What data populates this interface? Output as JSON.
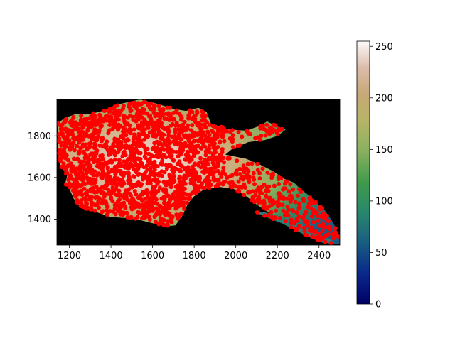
{
  "chart_data": {
    "type": "heatmap",
    "title": "",
    "xlabel": "",
    "ylabel": "",
    "xlim": [
      1140,
      2500
    ],
    "ylim": [
      1275,
      1975
    ],
    "xticks": [
      1200,
      1400,
      1600,
      1800,
      2000,
      2200,
      2400
    ],
    "xtick_labels": [
      "1200",
      "1400",
      "1600",
      "1800",
      "2000",
      "2200",
      "2400"
    ],
    "yticks": [
      1400,
      1600,
      1800
    ],
    "ytick_labels": [
      "1400",
      "1600",
      "1800"
    ],
    "background_color": "#000000",
    "colormap": "gist_earth",
    "colorbar": {
      "vmin": 0,
      "vmax": 255,
      "ticks": [
        0,
        50,
        100,
        150,
        200,
        250
      ],
      "tick_labels": [
        "0",
        "50",
        "100",
        "150",
        "200",
        "250"
      ]
    },
    "overlay": {
      "type": "scatter",
      "marker": "circle",
      "color": "#ff0000",
      "count_estimate": 2000
    },
    "region_outline": [
      [
        1145,
        1860
      ],
      [
        1175,
        1885
      ],
      [
        1230,
        1905
      ],
      [
        1300,
        1905
      ],
      [
        1380,
        1925
      ],
      [
        1450,
        1955
      ],
      [
        1540,
        1975
      ],
      [
        1620,
        1955
      ],
      [
        1700,
        1930
      ],
      [
        1760,
        1920
      ],
      [
        1820,
        1935
      ],
      [
        1860,
        1915
      ],
      [
        1880,
        1860
      ],
      [
        1910,
        1850
      ],
      [
        1970,
        1830
      ],
      [
        2050,
        1825
      ],
      [
        2120,
        1850
      ],
      [
        2150,
        1870
      ],
      [
        2200,
        1845
      ],
      [
        2240,
        1830
      ],
      [
        2200,
        1800
      ],
      [
        2140,
        1780
      ],
      [
        2060,
        1770
      ],
      [
        1980,
        1735
      ],
      [
        1950,
        1710
      ],
      [
        2050,
        1690
      ],
      [
        2120,
        1660
      ],
      [
        2180,
        1630
      ],
      [
        2230,
        1595
      ],
      [
        2280,
        1575
      ],
      [
        2310,
        1545
      ],
      [
        2350,
        1515
      ],
      [
        2390,
        1475
      ],
      [
        2430,
        1440
      ],
      [
        2460,
        1395
      ],
      [
        2480,
        1360
      ],
      [
        2500,
        1310
      ],
      [
        2500,
        1280
      ],
      [
        2450,
        1280
      ],
      [
        2400,
        1300
      ],
      [
        2340,
        1340
      ],
      [
        2280,
        1370
      ],
      [
        2220,
        1400
      ],
      [
        2160,
        1430
      ],
      [
        2100,
        1470
      ],
      [
        2050,
        1510
      ],
      [
        1990,
        1545
      ],
      [
        1920,
        1555
      ],
      [
        1850,
        1545
      ],
      [
        1800,
        1510
      ],
      [
        1770,
        1475
      ],
      [
        1745,
        1420
      ],
      [
        1710,
        1370
      ],
      [
        1660,
        1365
      ],
      [
        1600,
        1380
      ],
      [
        1540,
        1395
      ],
      [
        1470,
        1405
      ],
      [
        1400,
        1410
      ],
      [
        1340,
        1430
      ],
      [
        1280,
        1450
      ],
      [
        1240,
        1470
      ],
      [
        1220,
        1500
      ],
      [
        1200,
        1545
      ],
      [
        1180,
        1570
      ],
      [
        1190,
        1610
      ],
      [
        1160,
        1650
      ],
      [
        1150,
        1690
      ],
      [
        1145,
        1730
      ],
      [
        1145,
        1800
      ]
    ],
    "arm_outline": [
      [
        2090,
        1440
      ],
      [
        2150,
        1430
      ],
      [
        2210,
        1415
      ],
      [
        2260,
        1395
      ],
      [
        2310,
        1375
      ],
      [
        2360,
        1345
      ],
      [
        2410,
        1320
      ],
      [
        2460,
        1300
      ],
      [
        2470,
        1285
      ],
      [
        2420,
        1285
      ],
      [
        2370,
        1305
      ],
      [
        2320,
        1330
      ],
      [
        2270,
        1355
      ],
      [
        2220,
        1380
      ],
      [
        2170,
        1400
      ],
      [
        2120,
        1420
      ]
    ]
  }
}
